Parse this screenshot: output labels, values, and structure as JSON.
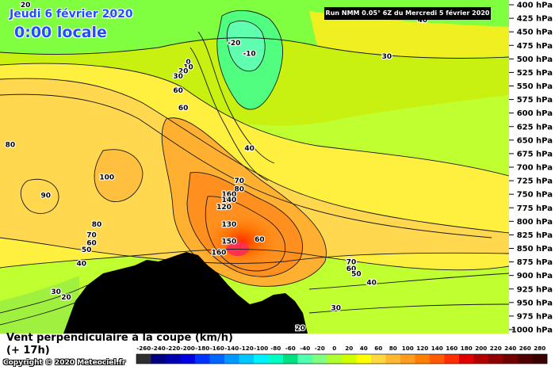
{
  "header": {
    "date": "Jeudi 6 février 2020",
    "time": "0:00 locale",
    "run_info": "Run NMM 0.05° 6Z du Mercredi 5 février 2020"
  },
  "caption": {
    "line1": "Vent perpendiculaire à la coupe (km/h)",
    "line2": "(+ 17h)",
    "copyright": "Copyright © 2020 Meteociel.fr"
  },
  "chart_data": {
    "type": "heatmap",
    "title": "Vent perpendiculaire à la coupe (km/h)",
    "y_axis": {
      "unit": "hPa",
      "ticks": [
        "400 hPa",
        "425 hPa",
        "450 hPa",
        "475 hPa",
        "500 hPa",
        "525 hPa",
        "550 hPa",
        "575 hPa",
        "600 hPa",
        "625 hPa",
        "650 hPa",
        "675 hPa",
        "700 hPa",
        "725 hPa",
        "750 hPa",
        "775 hPa",
        "800 hPa",
        "825 hPa",
        "850 hPa",
        "875 hPa",
        "900 hPa",
        "925 hPa",
        "950 hPa",
        "975 hPa",
        "1000 hPa"
      ]
    },
    "colorbar": {
      "labels": [
        "-260",
        "-240",
        "-220",
        "-200",
        "-180",
        "-160",
        "-140",
        "-120",
        "-100",
        "-80",
        "-60",
        "-40",
        "-20",
        "0",
        "20",
        "40",
        "60",
        "80",
        "100",
        "120",
        "140",
        "160",
        "180",
        "200",
        "220",
        "240",
        "260",
        "280"
      ],
      "colors": [
        "#2e2e2e",
        "#000080",
        "#0000b0",
        "#0000e0",
        "#0033ff",
        "#0066ff",
        "#0099ff",
        "#00c8ff",
        "#00f0ff",
        "#00ffc0",
        "#00e080",
        "#50ffb0",
        "#80ff80",
        "#b0ff30",
        "#d0ff00",
        "#ffff00",
        "#ffd840",
        "#ffb830",
        "#ff9c20",
        "#ff8000",
        "#ff5a00",
        "#ff2e00",
        "#e00000",
        "#b00000",
        "#900000",
        "#700000",
        "#500000",
        "#380000"
      ]
    },
    "contour_labels": [
      {
        "text": "20",
        "p": 400,
        "x": 0.05
      },
      {
        "text": "10",
        "p": 420,
        "x": 0.22
      },
      {
        "text": "-20",
        "p": 470,
        "x": 0.46
      },
      {
        "text": "-10",
        "p": 490,
        "x": 0.49
      },
      {
        "text": "0",
        "p": 505,
        "x": 0.37
      },
      {
        "text": "10",
        "p": 515,
        "x": 0.37
      },
      {
        "text": "20",
        "p": 522,
        "x": 0.36
      },
      {
        "text": "30",
        "p": 532,
        "x": 0.35
      },
      {
        "text": "60",
        "p": 558,
        "x": 0.35
      },
      {
        "text": "60",
        "p": 590,
        "x": 0.36
      },
      {
        "text": "40",
        "p": 428,
        "x": 0.83
      },
      {
        "text": "30",
        "p": 495,
        "x": 0.76
      },
      {
        "text": "80",
        "p": 658,
        "x": 0.02
      },
      {
        "text": "40",
        "p": 665,
        "x": 0.49
      },
      {
        "text": "100",
        "p": 718,
        "x": 0.21
      },
      {
        "text": "90",
        "p": 752,
        "x": 0.09
      },
      {
        "text": "70",
        "p": 725,
        "x": 0.47
      },
      {
        "text": "80",
        "p": 740,
        "x": 0.47
      },
      {
        "text": "160",
        "p": 750,
        "x": 0.45
      },
      {
        "text": "140",
        "p": 760,
        "x": 0.45
      },
      {
        "text": "120",
        "p": 773,
        "x": 0.44
      },
      {
        "text": "130",
        "p": 805,
        "x": 0.45
      },
      {
        "text": "80",
        "p": 805,
        "x": 0.19
      },
      {
        "text": "70",
        "p": 825,
        "x": 0.18
      },
      {
        "text": "60",
        "p": 840,
        "x": 0.18
      },
      {
        "text": "50",
        "p": 852,
        "x": 0.17
      },
      {
        "text": "150",
        "p": 837,
        "x": 0.45
      },
      {
        "text": "60",
        "p": 833,
        "x": 0.51
      },
      {
        "text": "160",
        "p": 857,
        "x": 0.43
      },
      {
        "text": "40",
        "p": 878,
        "x": 0.16
      },
      {
        "text": "70",
        "p": 875,
        "x": 0.69
      },
      {
        "text": "60",
        "p": 887,
        "x": 0.69
      },
      {
        "text": "50",
        "p": 897,
        "x": 0.7
      },
      {
        "text": "40",
        "p": 913,
        "x": 0.73
      },
      {
        "text": "30",
        "p": 930,
        "x": 0.11
      },
      {
        "text": "20",
        "p": 940,
        "x": 0.13
      },
      {
        "text": "30",
        "p": 960,
        "x": 0.66
      },
      {
        "text": "20",
        "p": 997,
        "x": 0.59
      }
    ]
  }
}
